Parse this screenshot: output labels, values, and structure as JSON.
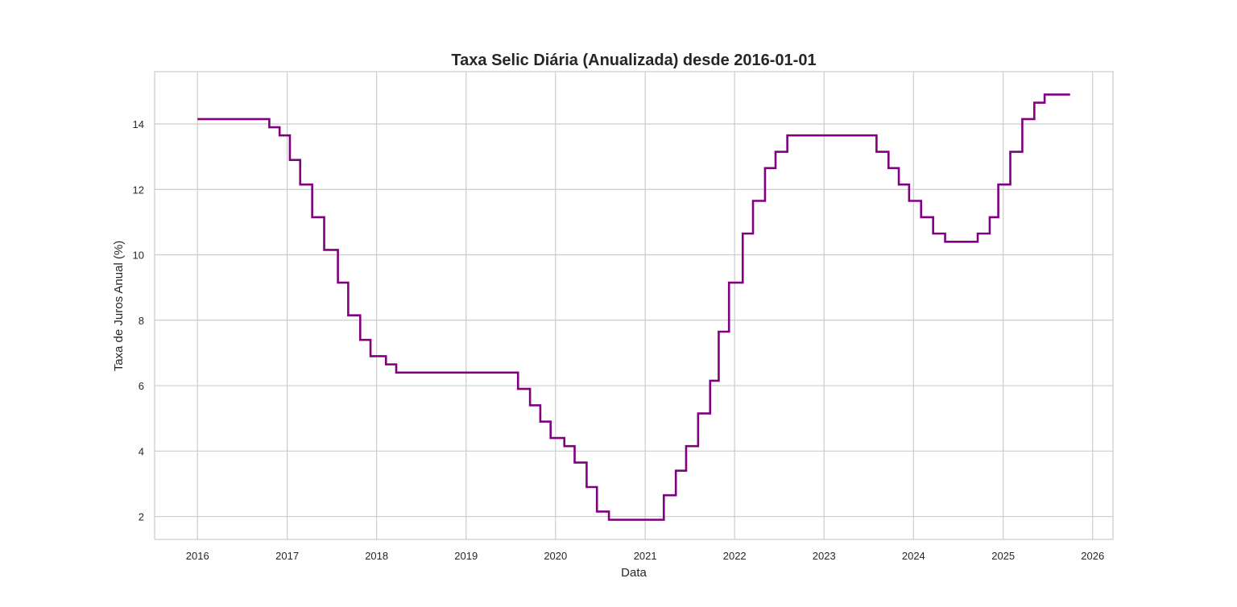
{
  "chart_data": {
    "type": "line",
    "title": "Taxa Selic Diária (Anualizada) desde 2016-01-01",
    "xlabel": "Data",
    "ylabel": "Taxa de Juros Anual (%)",
    "x_type": "date",
    "xlim": [
      "2015-07-10",
      "2026-03-25"
    ],
    "ylim": [
      1.3,
      15.6
    ],
    "x_ticks": [
      "2016",
      "2017",
      "2018",
      "2019",
      "2020",
      "2021",
      "2022",
      "2023",
      "2024",
      "2025",
      "2026"
    ],
    "y_ticks": [
      2,
      4,
      6,
      8,
      10,
      12,
      14
    ],
    "grid": true,
    "line_style": "step-post",
    "colors": {
      "series": "#800080",
      "grid": "#cccccc",
      "text": "#262626"
    },
    "series": [
      {
        "x": [
          "2016-01-01",
          "2016-10-20",
          "2016-12-01",
          "2017-01-12",
          "2017-02-23",
          "2017-04-13",
          "2017-06-01",
          "2017-07-27",
          "2017-09-07",
          "2017-10-26",
          "2017-12-07",
          "2018-02-08",
          "2018-03-22",
          "2019-08-01",
          "2019-09-19",
          "2019-10-31",
          "2019-12-12",
          "2020-02-06",
          "2020-03-19",
          "2020-05-07",
          "2020-06-18",
          "2020-08-06",
          "2021-03-18",
          "2021-05-06",
          "2021-06-17",
          "2021-08-05",
          "2021-09-23",
          "2021-10-28",
          "2021-12-09",
          "2022-02-03",
          "2022-03-17",
          "2022-05-05",
          "2022-06-17",
          "2022-08-04",
          "2023-08-03",
          "2023-09-21",
          "2023-11-02",
          "2023-12-14",
          "2024-02-01",
          "2024-03-21",
          "2024-05-09",
          "2024-09-19",
          "2024-11-07",
          "2024-12-12",
          "2025-01-30",
          "2025-03-20",
          "2025-05-08",
          "2025-06-19",
          "2025-10-01"
        ],
        "y": [
          14.15,
          13.9,
          13.65,
          12.9,
          12.15,
          11.15,
          10.15,
          9.15,
          8.15,
          7.4,
          6.9,
          6.65,
          6.4,
          5.9,
          5.4,
          4.9,
          4.4,
          4.15,
          3.65,
          2.9,
          2.15,
          1.9,
          2.65,
          3.4,
          4.15,
          5.15,
          6.15,
          7.65,
          9.15,
          10.65,
          11.65,
          12.65,
          13.15,
          13.65,
          13.15,
          12.65,
          12.15,
          11.65,
          11.15,
          10.65,
          10.4,
          10.65,
          11.15,
          12.15,
          13.15,
          14.15,
          14.65,
          14.9,
          14.9
        ]
      }
    ]
  }
}
